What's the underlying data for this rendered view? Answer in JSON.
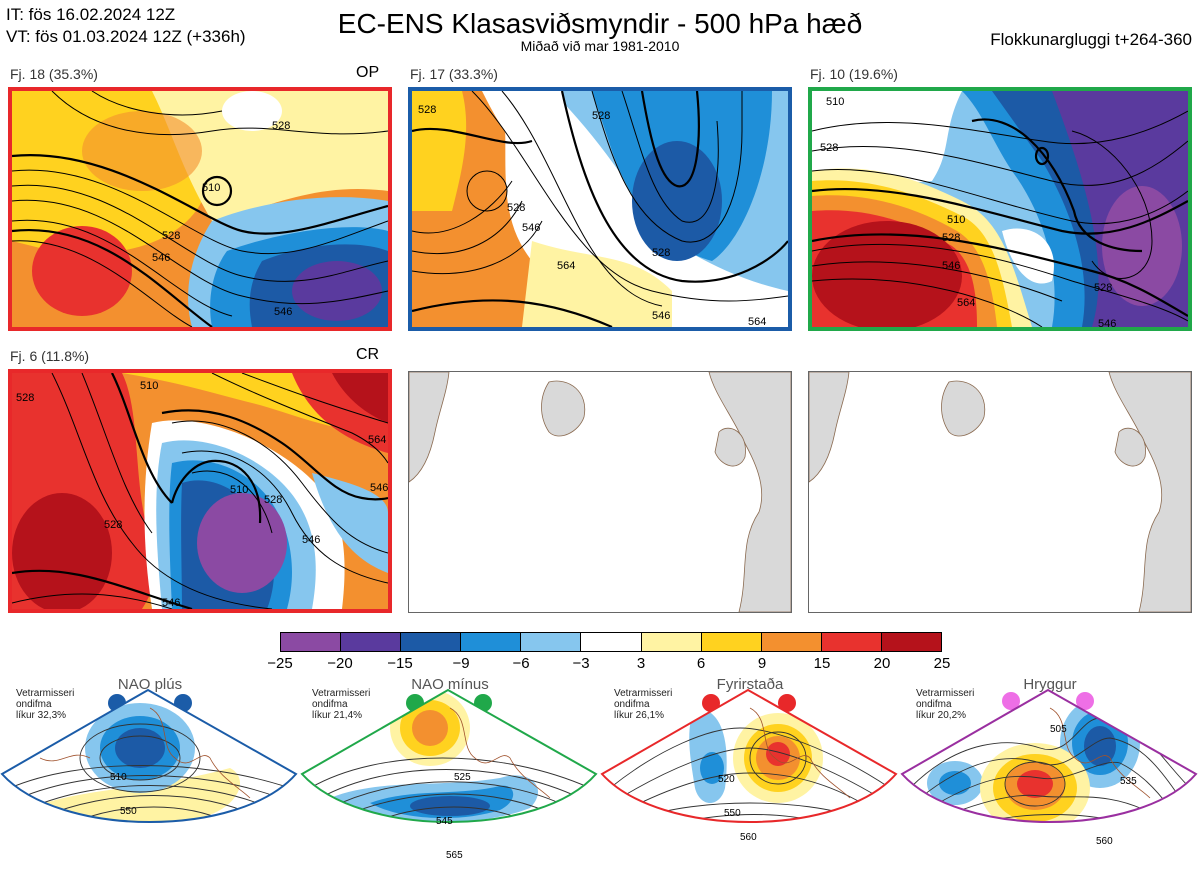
{
  "header": {
    "it_line": "IT: fös 16.02.2024 12Z",
    "vt_line": "VT: fös 01.03.2024 12Z  (+336h)",
    "title": "EC-ENS Klasasviðsmyndir - 500 hPa hæð",
    "subtitle": "Miðað við mar 1981-2010",
    "window": "Flokkunargluggi t+264-360"
  },
  "panels": [
    {
      "label": "Fj. 18 (35.3%)",
      "tag": "OP",
      "border_color": "#e8282a"
    },
    {
      "label": "Fj. 17 (33.3%)",
      "tag": "",
      "border_color": "#1b5ca8"
    },
    {
      "label": "Fj. 10 (19.6%)",
      "tag": "",
      "border_color": "#20a84a"
    },
    {
      "label": "Fj. 6 (11.8%)",
      "tag": "CR",
      "border_color": "#e8282a"
    }
  ],
  "colorbar": {
    "ticks": [
      "−25",
      "−20",
      "−15",
      "−9",
      "−6",
      "−3",
      "3",
      "6",
      "9",
      "15",
      "20",
      "25"
    ],
    "colors": [
      "#8b4aa3",
      "#5a3a9e",
      "#1c5aa6",
      "#1f8fd8",
      "#86c6ee",
      "#ffffff",
      "#fff3a3",
      "#ffd21f",
      "#f3902f",
      "#e8322e",
      "#b5121b"
    ]
  },
  "regimes": [
    {
      "title": "NAO plús",
      "note": [
        "Vetrarmisseri",
        "ondifma",
        "líkur 32,3%"
      ],
      "color": "#1b5ca8",
      "contours": [
        "510",
        "550"
      ]
    },
    {
      "title": "NAO mínus",
      "note": [
        "Vetrarmisseri",
        "ondifma",
        "líkur 21,4%"
      ],
      "color": "#20a84a",
      "contours": [
        "525",
        "545",
        "565"
      ]
    },
    {
      "title": "Fyrirstaða",
      "note": [
        "Vetrarmisseri",
        "ondifma",
        "líkur 26,1%"
      ],
      "color": "#e8282a",
      "contours": [
        "520",
        "550",
        "560"
      ]
    },
    {
      "title": "Hryggur",
      "note": [
        "Vetrarmisseri",
        "ondifma",
        "líkur 20,2%"
      ],
      "color": "#9a2fa0",
      "dot_color": "#ee6fe6",
      "contours": [
        "505",
        "535",
        "560"
      ]
    }
  ],
  "chart_data": {
    "type": "heatmap",
    "title": "EC-ENS Klasasviðsmyndir - 500 hPa hæð",
    "subtitle": "Miðað við mar 1981-2010",
    "colorbar_ticks": [
      -25,
      -20,
      -15,
      -9,
      -6,
      -3,
      3,
      6,
      9,
      15,
      20,
      25
    ],
    "clusters": [
      {
        "label": "Fj. 18 (35.3%)",
        "contour_labels": [
          "528",
          "510",
          "546",
          "528",
          "546"
        ]
      },
      {
        "label": "Fj. 17 (33.3%)",
        "contour_labels": [
          "528",
          "546",
          "528",
          "528",
          "564",
          "546",
          "528",
          "564"
        ]
      },
      {
        "label": "Fj. 10 (19.6%)",
        "contour_labels": [
          "510",
          "528",
          "510",
          "528",
          "546",
          "564",
          "528",
          "546"
        ]
      },
      {
        "label": "Fj. 6 (11.8%)",
        "contour_labels": [
          "528",
          "510",
          "528",
          "510",
          "546",
          "546",
          "564",
          "528",
          "546"
        ]
      }
    ]
  }
}
